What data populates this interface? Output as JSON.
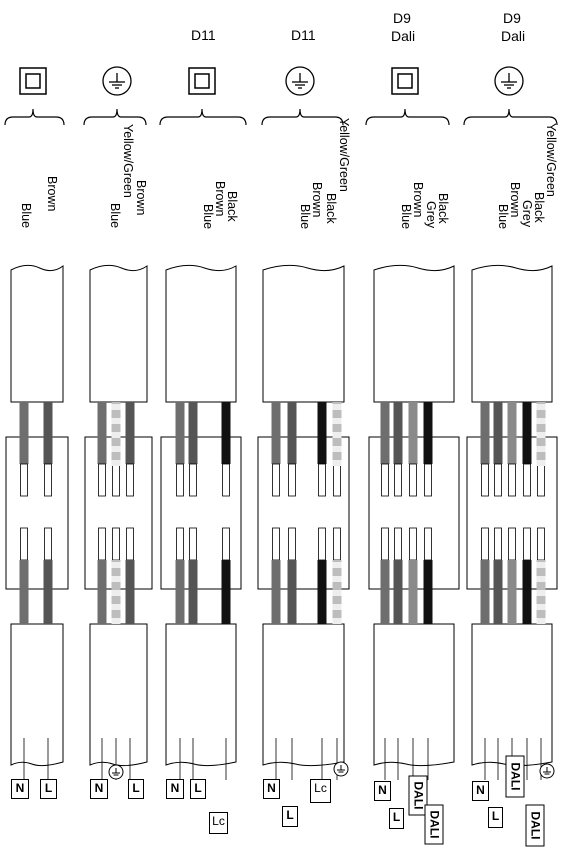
{
  "colors": {
    "black": "#111111",
    "dark_grey": "#555555",
    "grey": "#8a8a8a",
    "blue": "#6e6e6e",
    "yellow_green": "#bdbdbd"
  },
  "columns": [
    {
      "title": "",
      "subtitle": "",
      "symbol": "class-ii-icon",
      "wires": [
        "Brown",
        "Blue"
      ],
      "terminals": [
        "N",
        "L"
      ]
    },
    {
      "title": "",
      "subtitle": "",
      "symbol": "earth-icon",
      "wires": [
        "Brown",
        "Yellow/Green",
        "Blue"
      ],
      "terminals": [
        "N",
        "L"
      ]
    },
    {
      "title": "D11",
      "subtitle": "",
      "symbol": "class-ii-icon",
      "wires": [
        "Black",
        "Brown",
        "Blue"
      ],
      "terminals": [
        "N",
        "L",
        "Lc"
      ]
    },
    {
      "title": "D11",
      "subtitle": "",
      "symbol": "earth-icon",
      "wires": [
        "Yellow/Green",
        "Black",
        "Brown",
        "Blue"
      ],
      "terminals": [
        "N",
        "L",
        "Lc"
      ]
    },
    {
      "title": "D9",
      "subtitle": "Dali",
      "symbol": "class-ii-icon",
      "wires": [
        "Black",
        "Grey",
        "Brown",
        "Blue"
      ],
      "terminals": [
        "N",
        "L",
        "DALI",
        "DALI"
      ]
    },
    {
      "title": "D9",
      "subtitle": "Dali",
      "symbol": "earth-icon",
      "wires": [
        "Yellow/Green",
        "Black",
        "Grey",
        "Brown",
        "Blue"
      ],
      "terminals": [
        "N",
        "L",
        "DALI",
        "DALI"
      ]
    }
  ]
}
